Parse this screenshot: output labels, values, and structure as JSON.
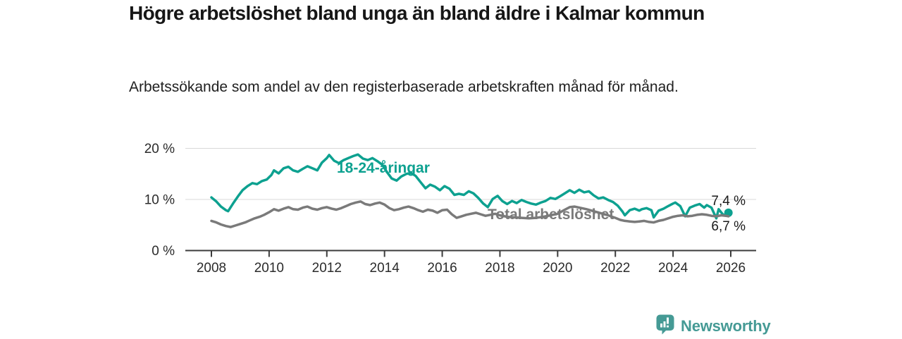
{
  "header": {
    "title": "Högre arbetslöshet bland unga än bland äldre i Kalmar kommun",
    "subtitle": "Arbetssökande som andel av den registerbaserade arbetskraften månad för månad."
  },
  "branding": {
    "name": "Newsworthy",
    "icon": "newsworthy-speech-bubble-bar-chart-icon",
    "color": "#459a95"
  },
  "colors": {
    "youth_line": "#0da190",
    "total_line": "#7a7a7a",
    "gridline": "#d9d9d9",
    "axis": "#3c3c3c",
    "text": "#2b2b2b"
  },
  "chart_data": {
    "type": "line",
    "title": "Högre arbetslöshet bland unga än bland äldre i Kalmar kommun",
    "subtitle": "Arbetssökande som andel av den registerbaserade arbetskraften månad för månad.",
    "xlabel": "",
    "ylabel": "",
    "ylim": [
      0,
      20
    ],
    "xlim": [
      2008,
      2026
    ],
    "grid": "horizontal",
    "legend_position": "inline-labels",
    "x_ticks": [
      2008,
      2010,
      2012,
      2014,
      2016,
      2018,
      2020,
      2022,
      2024,
      2026
    ],
    "y_ticks": [
      {
        "value": 0,
        "label": "0 %"
      },
      {
        "value": 10,
        "label": "10 %"
      },
      {
        "value": 20,
        "label": "20 %"
      }
    ],
    "series": [
      {
        "name": "18-24-åringar",
        "color": "#0da190",
        "end_value_label": "7,4 %",
        "end_dot": true,
        "points": [
          [
            2008.0,
            10.4
          ],
          [
            2008.17,
            9.6
          ],
          [
            2008.33,
            8.6
          ],
          [
            2008.5,
            7.9
          ],
          [
            2008.58,
            7.7
          ],
          [
            2008.75,
            9.2
          ],
          [
            2008.92,
            10.6
          ],
          [
            2009.08,
            11.8
          ],
          [
            2009.25,
            12.6
          ],
          [
            2009.42,
            13.2
          ],
          [
            2009.58,
            13.0
          ],
          [
            2009.75,
            13.6
          ],
          [
            2009.92,
            13.9
          ],
          [
            2010.08,
            14.8
          ],
          [
            2010.17,
            15.7
          ],
          [
            2010.33,
            15.1
          ],
          [
            2010.5,
            16.1
          ],
          [
            2010.67,
            16.4
          ],
          [
            2010.83,
            15.7
          ],
          [
            2011.0,
            15.4
          ],
          [
            2011.17,
            16.0
          ],
          [
            2011.33,
            16.5
          ],
          [
            2011.5,
            16.1
          ],
          [
            2011.67,
            15.7
          ],
          [
            2011.83,
            17.2
          ],
          [
            2012.0,
            18.1
          ],
          [
            2012.08,
            18.7
          ],
          [
            2012.25,
            17.6
          ],
          [
            2012.42,
            17.1
          ],
          [
            2012.58,
            17.7
          ],
          [
            2012.75,
            18.1
          ],
          [
            2012.92,
            18.5
          ],
          [
            2013.08,
            18.8
          ],
          [
            2013.25,
            18.0
          ],
          [
            2013.42,
            17.7
          ],
          [
            2013.58,
            18.1
          ],
          [
            2013.75,
            17.5
          ],
          [
            2013.92,
            16.8
          ],
          [
            2014.08,
            15.4
          ],
          [
            2014.25,
            14.1
          ],
          [
            2014.42,
            13.7
          ],
          [
            2014.58,
            14.5
          ],
          [
            2014.75,
            15.0
          ],
          [
            2014.92,
            15.2
          ],
          [
            2015.08,
            14.6
          ],
          [
            2015.25,
            13.4
          ],
          [
            2015.42,
            12.2
          ],
          [
            2015.58,
            12.9
          ],
          [
            2015.75,
            12.5
          ],
          [
            2015.92,
            11.8
          ],
          [
            2016.08,
            12.6
          ],
          [
            2016.25,
            12.1
          ],
          [
            2016.42,
            10.9
          ],
          [
            2016.58,
            11.1
          ],
          [
            2016.75,
            10.9
          ],
          [
            2016.92,
            11.6
          ],
          [
            2017.08,
            11.2
          ],
          [
            2017.25,
            10.3
          ],
          [
            2017.42,
            9.2
          ],
          [
            2017.58,
            8.5
          ],
          [
            2017.75,
            10.1
          ],
          [
            2017.92,
            10.7
          ],
          [
            2018.08,
            9.7
          ],
          [
            2018.25,
            9.1
          ],
          [
            2018.42,
            9.7
          ],
          [
            2018.58,
            9.3
          ],
          [
            2018.75,
            9.9
          ],
          [
            2018.92,
            9.5
          ],
          [
            2019.08,
            9.2
          ],
          [
            2019.25,
            9.0
          ],
          [
            2019.42,
            9.4
          ],
          [
            2019.58,
            9.7
          ],
          [
            2019.75,
            10.3
          ],
          [
            2019.92,
            10.1
          ],
          [
            2020.08,
            10.6
          ],
          [
            2020.25,
            11.2
          ],
          [
            2020.42,
            11.8
          ],
          [
            2020.58,
            11.3
          ],
          [
            2020.75,
            11.9
          ],
          [
            2020.92,
            11.4
          ],
          [
            2021.08,
            11.6
          ],
          [
            2021.25,
            10.8
          ],
          [
            2021.42,
            10.2
          ],
          [
            2021.58,
            10.4
          ],
          [
            2021.75,
            9.9
          ],
          [
            2021.92,
            9.5
          ],
          [
            2022.08,
            8.8
          ],
          [
            2022.25,
            7.6
          ],
          [
            2022.33,
            6.9
          ],
          [
            2022.5,
            7.9
          ],
          [
            2022.67,
            8.2
          ],
          [
            2022.83,
            7.8
          ],
          [
            2022.92,
            8.1
          ],
          [
            2023.08,
            8.3
          ],
          [
            2023.25,
            7.9
          ],
          [
            2023.33,
            6.5
          ],
          [
            2023.5,
            7.8
          ],
          [
            2023.67,
            8.2
          ],
          [
            2023.83,
            8.7
          ],
          [
            2024.0,
            9.2
          ],
          [
            2024.08,
            9.4
          ],
          [
            2024.25,
            8.7
          ],
          [
            2024.42,
            6.7
          ],
          [
            2024.58,
            8.4
          ],
          [
            2024.75,
            8.8
          ],
          [
            2024.92,
            9.1
          ],
          [
            2025.08,
            8.4
          ],
          [
            2025.17,
            8.9
          ],
          [
            2025.33,
            8.4
          ],
          [
            2025.5,
            6.3
          ],
          [
            2025.58,
            8.1
          ],
          [
            2025.75,
            6.9
          ],
          [
            2025.92,
            7.4
          ]
        ]
      },
      {
        "name": "Total arbetslöshet",
        "color": "#7a7a7a",
        "end_value_label": "6,7 %",
        "end_dot": false,
        "points": [
          [
            2008.0,
            5.8
          ],
          [
            2008.17,
            5.5
          ],
          [
            2008.33,
            5.1
          ],
          [
            2008.5,
            4.8
          ],
          [
            2008.67,
            4.6
          ],
          [
            2008.83,
            4.9
          ],
          [
            2009.0,
            5.2
          ],
          [
            2009.17,
            5.5
          ],
          [
            2009.33,
            5.9
          ],
          [
            2009.5,
            6.3
          ],
          [
            2009.67,
            6.6
          ],
          [
            2009.83,
            7.0
          ],
          [
            2010.0,
            7.5
          ],
          [
            2010.17,
            8.1
          ],
          [
            2010.33,
            7.8
          ],
          [
            2010.5,
            8.2
          ],
          [
            2010.67,
            8.5
          ],
          [
            2010.83,
            8.1
          ],
          [
            2011.0,
            8.0
          ],
          [
            2011.17,
            8.4
          ],
          [
            2011.33,
            8.6
          ],
          [
            2011.5,
            8.2
          ],
          [
            2011.67,
            8.0
          ],
          [
            2011.83,
            8.3
          ],
          [
            2012.0,
            8.5
          ],
          [
            2012.17,
            8.2
          ],
          [
            2012.33,
            8.0
          ],
          [
            2012.5,
            8.3
          ],
          [
            2012.67,
            8.7
          ],
          [
            2012.83,
            9.1
          ],
          [
            2013.0,
            9.4
          ],
          [
            2013.17,
            9.6
          ],
          [
            2013.33,
            9.1
          ],
          [
            2013.5,
            8.9
          ],
          [
            2013.67,
            9.2
          ],
          [
            2013.83,
            9.4
          ],
          [
            2014.0,
            9.0
          ],
          [
            2014.17,
            8.3
          ],
          [
            2014.33,
            7.9
          ],
          [
            2014.5,
            8.1
          ],
          [
            2014.67,
            8.4
          ],
          [
            2014.83,
            8.6
          ],
          [
            2015.0,
            8.3
          ],
          [
            2015.17,
            7.9
          ],
          [
            2015.33,
            7.6
          ],
          [
            2015.5,
            8.0
          ],
          [
            2015.67,
            7.8
          ],
          [
            2015.83,
            7.4
          ],
          [
            2016.0,
            7.9
          ],
          [
            2016.17,
            8.0
          ],
          [
            2016.33,
            7.1
          ],
          [
            2016.5,
            6.4
          ],
          [
            2016.67,
            6.7
          ],
          [
            2016.83,
            7.0
          ],
          [
            2017.0,
            7.2
          ],
          [
            2017.17,
            7.4
          ],
          [
            2017.33,
            7.1
          ],
          [
            2017.5,
            6.8
          ],
          [
            2017.67,
            7.0
          ],
          [
            2017.83,
            7.2
          ],
          [
            2018.0,
            6.9
          ],
          [
            2018.25,
            6.6
          ],
          [
            2018.5,
            6.5
          ],
          [
            2018.75,
            6.4
          ],
          [
            2019.0,
            6.3
          ],
          [
            2019.25,
            6.4
          ],
          [
            2019.5,
            6.6
          ],
          [
            2019.75,
            6.9
          ],
          [
            2020.0,
            7.2
          ],
          [
            2020.25,
            8.0
          ],
          [
            2020.42,
            8.5
          ],
          [
            2020.58,
            8.6
          ],
          [
            2020.75,
            8.4
          ],
          [
            2021.0,
            8.1
          ],
          [
            2021.25,
            7.7
          ],
          [
            2021.5,
            7.3
          ],
          [
            2021.75,
            6.9
          ],
          [
            2022.0,
            6.4
          ],
          [
            2022.17,
            6.0
          ],
          [
            2022.33,
            5.8
          ],
          [
            2022.5,
            5.7
          ],
          [
            2022.67,
            5.6
          ],
          [
            2022.83,
            5.7
          ],
          [
            2023.0,
            5.8
          ],
          [
            2023.17,
            5.6
          ],
          [
            2023.33,
            5.5
          ],
          [
            2023.5,
            5.8
          ],
          [
            2023.67,
            6.0
          ],
          [
            2023.83,
            6.3
          ],
          [
            2024.0,
            6.6
          ],
          [
            2024.17,
            6.8
          ],
          [
            2024.33,
            6.9
          ],
          [
            2024.5,
            6.7
          ],
          [
            2024.67,
            6.8
          ],
          [
            2024.83,
            7.0
          ],
          [
            2025.0,
            7.1
          ],
          [
            2025.17,
            7.0
          ],
          [
            2025.33,
            6.8
          ],
          [
            2025.5,
            6.7
          ],
          [
            2025.67,
            6.9
          ],
          [
            2025.83,
            6.8
          ],
          [
            2025.92,
            6.7
          ]
        ]
      }
    ]
  }
}
